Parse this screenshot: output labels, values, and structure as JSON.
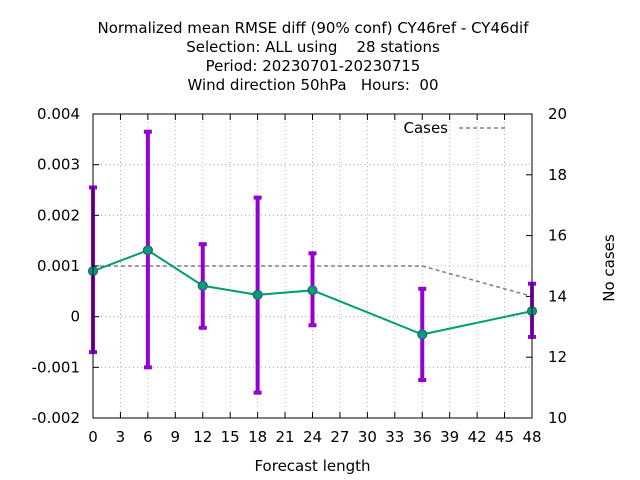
{
  "chart_data": {
    "type": "line",
    "title_lines": [
      "Normalized mean RMSE diff (90% conf) CY46ref - CY46dif",
      "Selection: ALL using    28 stations",
      "Period: 20230701-20230715",
      "Wind direction 50hPa   Hours:  00"
    ],
    "xlabel": "Forecast length",
    "ylabel": "",
    "y2label": "No cases",
    "xlim": [
      0,
      48
    ],
    "ylim": [
      -0.002,
      0.004
    ],
    "y2lim": [
      10,
      20
    ],
    "x_ticks": [
      0,
      3,
      6,
      9,
      12,
      15,
      18,
      21,
      24,
      27,
      30,
      33,
      36,
      39,
      42,
      45,
      48
    ],
    "y_ticks": [
      -0.002,
      -0.001,
      0,
      0.001,
      0.002,
      0.003,
      0.004
    ],
    "y_tick_labels": [
      "-0.002",
      "-0.001",
      "0",
      "0.001",
      "0.002",
      "0.003",
      "0.004"
    ],
    "y2_ticks": [
      10,
      12,
      14,
      16,
      18,
      20
    ],
    "y2_tick_labels": [
      "10",
      "12",
      "14",
      "16",
      "18",
      "20"
    ],
    "grid": true,
    "legend_position": "top-right",
    "series": [
      {
        "name": "",
        "axis": "y",
        "color": "#009e73",
        "error_color": "#9400d3",
        "x": [
          0,
          6,
          12,
          18,
          24,
          36,
          48
        ],
        "y": [
          0.0009,
          0.00131,
          0.00061,
          0.00043,
          0.00052,
          -0.00035,
          0.00011
        ],
        "err_low": [
          -0.0007,
          -0.001,
          -0.00022,
          -0.0015,
          -0.00017,
          -0.00125,
          -0.0004
        ],
        "err_high": [
          0.00255,
          0.00365,
          0.00143,
          0.00235,
          0.00125,
          0.00055,
          0.00065
        ]
      },
      {
        "name": "Cases",
        "axis": "y2",
        "color": "#808080",
        "dashed": true,
        "x": [
          0,
          6,
          12,
          18,
          24,
          36,
          48
        ],
        "y": [
          15,
          15,
          15,
          15,
          15,
          15,
          14
        ]
      }
    ]
  }
}
